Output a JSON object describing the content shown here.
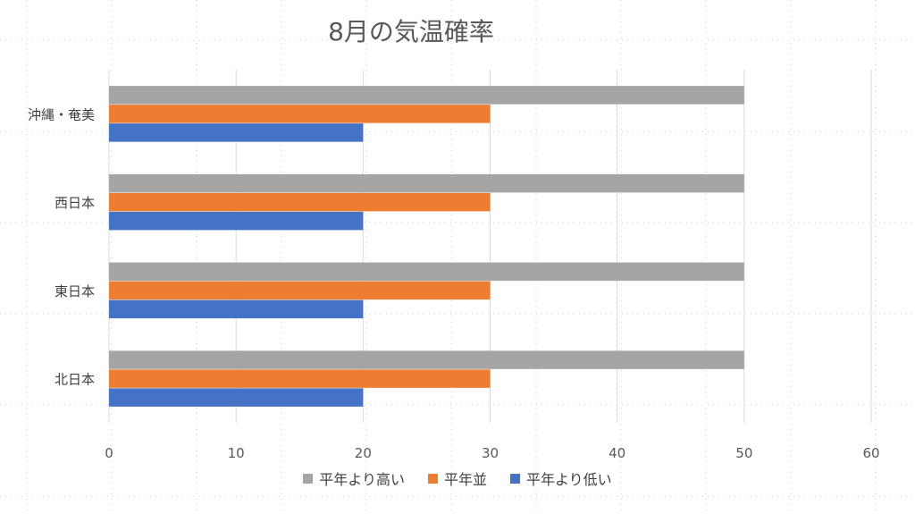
{
  "chart_data": {
    "type": "bar",
    "orientation": "horizontal",
    "title": "8月の気温確率",
    "categories": [
      "沖縄・奄美",
      "西日本",
      "東日本",
      "北日本"
    ],
    "series": [
      {
        "name": "平年より高い",
        "color": "#A5A5A5",
        "values": [
          50,
          50,
          50,
          50
        ]
      },
      {
        "name": "平年並",
        "color": "#ED7D31",
        "values": [
          30,
          30,
          30,
          30
        ]
      },
      {
        "name": "平年より低い",
        "color": "#4472C4",
        "values": [
          20,
          20,
          20,
          20
        ]
      }
    ],
    "xlim": [
      0,
      60
    ],
    "xticks": [
      "0",
      "10",
      "20",
      "30",
      "40",
      "50",
      "60"
    ],
    "xlabel": "",
    "ylabel": "",
    "grid": true,
    "legend_position": "bottom"
  }
}
